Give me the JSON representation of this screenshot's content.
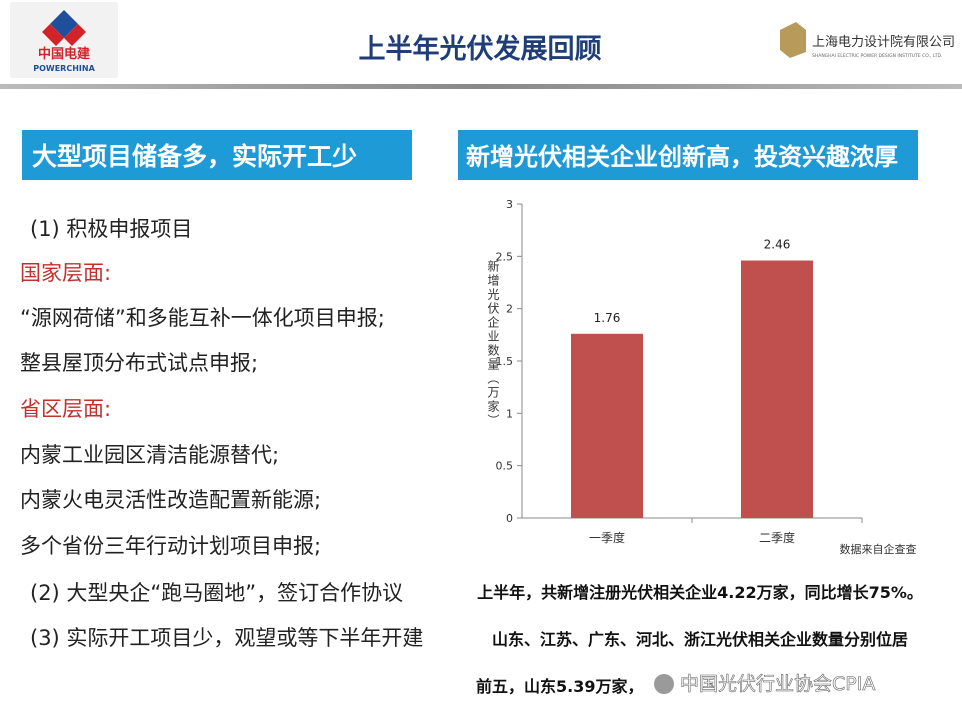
{
  "header": {
    "title": "上半年光伏发展回顾",
    "left_logo": {
      "name": "中国电建",
      "english": "POWERCHINA"
    },
    "right_logo": {
      "name": "上海电力设计院有限公司",
      "english": "SHANGHAI ELECTRIC POWER DESIGN INSTITUTE CO., LTD."
    }
  },
  "left": {
    "heading": "大型项目储备多，实际开工少",
    "items": [
      "(1) 积极申报项目",
      "国家层面:",
      "“源网荷储”和多能互补一体化项目申报;",
      "整县屋顶分布式试点申报;",
      "省区层面:",
      "内蒙工业园区清洁能源替代;",
      "内蒙火电灵活性改造配置新能源;",
      "多个省份三年行动计划项目申报;",
      "(2) 大型央企“跑马圈地”，签订合作协议",
      "(3) 实际开工项目少，观望或等下半年开建"
    ]
  },
  "right": {
    "heading": "新增光伏相关企业创新高，投资兴趣浓厚",
    "lines": [
      "上半年，共新增注册光伏相关企业4.22万家，同比增长75%。",
      "山东、江苏、广东、河北、浙江光伏相关企业数量分别位居",
      "前五，山东5.39万家，"
    ],
    "watermark": "中国光伏行业协会CPIA"
  },
  "chart_data": {
    "type": "bar",
    "y_label": "新增光伏企业数量（万家）",
    "note": "数据来自企查查",
    "categories": [
      "一季度",
      "二季度"
    ],
    "values": [
      1.76,
      2.46
    ],
    "color": "#c0504d",
    "ylim": [
      0,
      3
    ],
    "yticks": [
      0,
      0.5,
      1,
      1.5,
      2,
      2.5,
      3
    ],
    "grid": false
  }
}
